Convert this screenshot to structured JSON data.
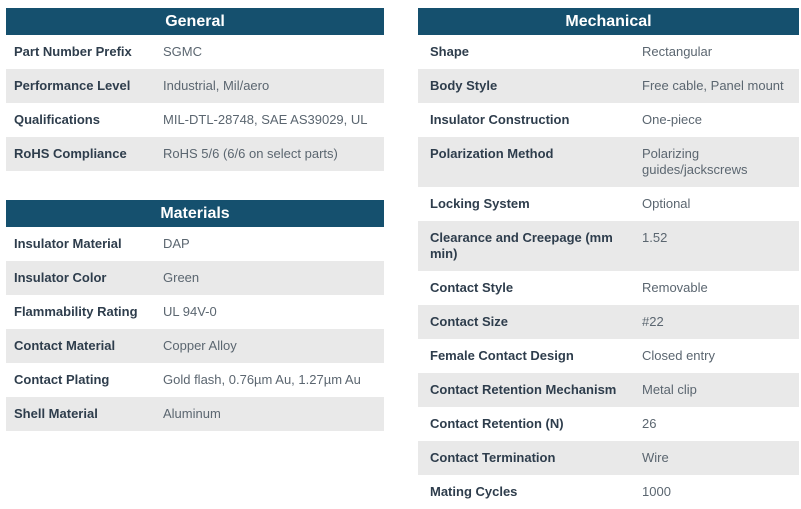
{
  "theme": {
    "header_bg": "#15506e",
    "header_text": "#ffffff",
    "label_color": "#2e3d4c",
    "value_color": "#5b6670",
    "alt_row_bg": "#e9e9e9"
  },
  "tables": [
    {
      "title": "General",
      "rows": [
        {
          "label": "Part Number Prefix",
          "value": "SGMC"
        },
        {
          "label": "Performance Level",
          "value": "Industrial, Mil/aero"
        },
        {
          "label": "Qualifications",
          "value": "MIL-DTL-28748, SAE AS39029, UL"
        },
        {
          "label": "RoHS Compliance",
          "value": "RoHS 5/6 (6/6 on select parts)"
        }
      ]
    },
    {
      "title": "Materials",
      "rows": [
        {
          "label": "Insulator Material",
          "value": "DAP"
        },
        {
          "label": "Insulator Color",
          "value": "Green"
        },
        {
          "label": "Flammability Rating",
          "value": "UL 94V-0"
        },
        {
          "label": "Contact Material",
          "value": "Copper Alloy"
        },
        {
          "label": "Contact Plating",
          "value": "Gold flash, 0.76µm Au, 1.27µm Au"
        },
        {
          "label": "Shell Material",
          "value": "Aluminum"
        }
      ]
    },
    {
      "title": "Mechanical",
      "rows": [
        {
          "label": "Shape",
          "value": "Rectangular"
        },
        {
          "label": "Body Style",
          "value": "Free cable, Panel mount"
        },
        {
          "label": "Insulator Construction",
          "value": "One-piece"
        },
        {
          "label": "Polarization Method",
          "value": "Polarizing guides/jackscrews"
        },
        {
          "label": "Locking System",
          "value": "Optional"
        },
        {
          "label": "Clearance and Creepage (mm min)",
          "value": "1.52"
        },
        {
          "label": "Contact Style",
          "value": "Removable"
        },
        {
          "label": "Contact Size",
          "value": "#22"
        },
        {
          "label": "Female Contact Design",
          "value": "Closed entry"
        },
        {
          "label": "Contact Retention Mechanism",
          "value": "Metal clip"
        },
        {
          "label": "Contact Retention (N)",
          "value": "26"
        },
        {
          "label": "Contact Termination",
          "value": "Wire"
        },
        {
          "label": "Mating Cycles",
          "value": "1000"
        }
      ]
    }
  ]
}
